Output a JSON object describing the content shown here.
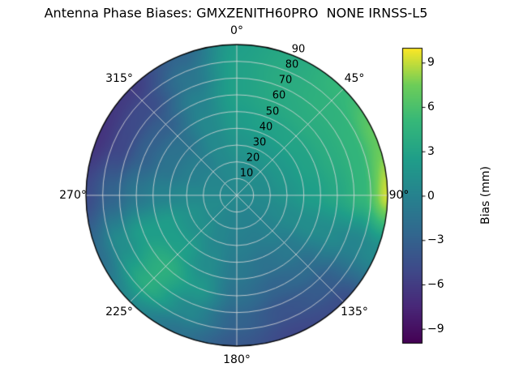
{
  "chart_data": {
    "type": "heatmap",
    "projection": "polar",
    "title": "Antenna Phase Biases: GMXZENITH60PRO  NONE IRNSS-L5",
    "theta_zero_location": "top",
    "theta_direction": "clockwise",
    "theta_labels": [
      "0°",
      "45°",
      "90°",
      "135°",
      "180°",
      "225°",
      "270°",
      "315°"
    ],
    "r_tick_labels": [
      "10",
      "20",
      "30",
      "40",
      "50",
      "60",
      "70",
      "80",
      "90"
    ],
    "r_max": 90,
    "r_label_angle_deg": 22.5,
    "azimuth_deg": [
      0,
      22.5,
      45,
      67.5,
      90,
      112.5,
      135,
      157.5,
      180,
      202.5,
      225,
      247.5,
      270,
      292.5,
      315,
      337.5
    ],
    "zenith_deg": [
      0,
      15,
      30,
      45,
      60,
      75,
      90
    ],
    "bias_mm": [
      [
        0.6,
        0.6,
        0.6,
        0.6,
        0.6,
        0.6,
        0.6,
        0.6,
        0.6,
        0.6,
        0.6,
        0.6,
        0.6,
        0.6,
        0.6,
        0.6
      ],
      [
        0.9,
        1.0,
        1.0,
        0.9,
        0.8,
        0.5,
        0.2,
        0.0,
        0.1,
        0.3,
        0.6,
        0.8,
        0.6,
        0.4,
        0.3,
        0.6
      ],
      [
        1.6,
        1.9,
        2.0,
        1.9,
        1.6,
        0.8,
        0.0,
        -0.5,
        -0.3,
        0.4,
        1.3,
        1.4,
        0.6,
        -0.3,
        -0.4,
        0.7
      ],
      [
        2.3,
        2.8,
        3.0,
        2.9,
        2.5,
        1.0,
        -0.8,
        -1.5,
        -0.8,
        0.9,
        2.6,
        2.4,
        0.0,
        -1.4,
        -1.6,
        0.6
      ],
      [
        2.8,
        3.5,
        3.9,
        3.9,
        3.4,
        0.8,
        -2.0,
        -2.8,
        -1.6,
        2.0,
        4.2,
        2.5,
        -1.0,
        -3.0,
        -3.2,
        0.0
      ],
      [
        2.8,
        3.8,
        4.4,
        4.7,
        4.8,
        0.2,
        -3.4,
        -4.2,
        -2.8,
        0.5,
        4.0,
        1.0,
        -2.8,
        -5.2,
        -4.8,
        -1.2
      ],
      [
        2.6,
        3.6,
        5.0,
        7.0,
        9.2,
        0.8,
        -4.6,
        -5.2,
        -3.8,
        -1.5,
        0.8,
        -1.8,
        -4.8,
        -6.6,
        -6.0,
        -2.6
      ]
    ],
    "colorbar": {
      "label": "Bias (mm)",
      "tick_labels": [
        "9",
        "6",
        "3",
        "0",
        "−3",
        "−6",
        "−9"
      ],
      "tick_values": [
        9,
        6,
        3,
        0,
        -3,
        -6,
        -9
      ],
      "vmin": -10,
      "vmax": 10,
      "colormap": "viridis"
    },
    "colors": {
      "background": "#ffffff",
      "grid": "#d9d9d9",
      "outline": "#000000",
      "text": "#000000"
    }
  }
}
